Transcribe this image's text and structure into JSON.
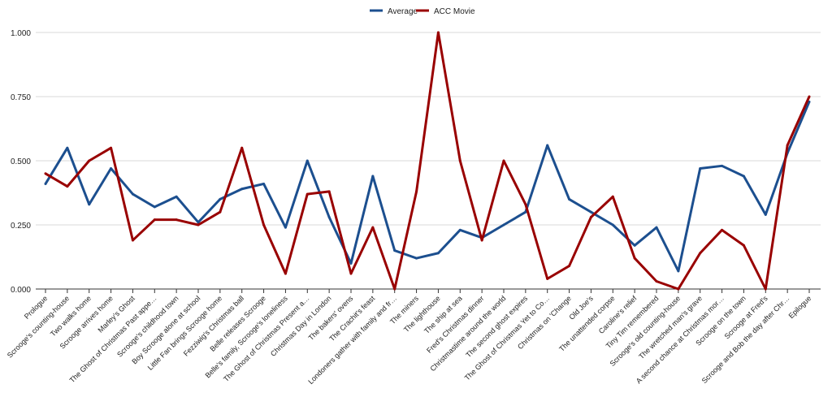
{
  "chart_data": {
    "type": "line",
    "title": "",
    "xlabel": "",
    "ylabel": "",
    "ylim": [
      0,
      1
    ],
    "yticks": [
      "0.000",
      "0.250",
      "0.500",
      "0.750",
      "1.000"
    ],
    "ytick_values": [
      0,
      0.25,
      0.5,
      0.75,
      1
    ],
    "grid": true,
    "legend_position": "top-center",
    "categories": [
      "Prologue",
      "Scrooge's counting-house",
      "Two walks home",
      "Scrooge arrives home",
      "Marley's Ghost",
      "The Ghost of Christmas Past appe…",
      "Scrooge's childhood town",
      "Boy Scrooge alone at school",
      "Little Fan brings Scrooge home",
      "Fezziwig's Christmas ball",
      "Belle releases Scrooge",
      "Belle's family, Scrooge's loneliness",
      "The Ghost of Christmas Present a…",
      "Christmas Day in London",
      "The bakers' ovens",
      "The Crachit's feast",
      "Londoners gather with family and fr…",
      "The miners",
      "The lighthouse",
      "The ship at sea",
      "Fred's Christmas dinner",
      "Christmastime around the world",
      "The second ghost expires",
      "The Ghost of Christmas Yet to Co…",
      "Christmas on 'Change",
      "Old Joe's",
      "The unattended corpse",
      "Caroline's relief",
      "Tiny Tim remembered",
      "Scrooge's old counting-house",
      "The wretched man's grave",
      "A second chance at Christmas mor…",
      "Scrooge on the town",
      "Scrooge at Fred's",
      "Scrooge and Bob the day after Chr…",
      "Epilogue"
    ],
    "series": [
      {
        "name": "Average",
        "color": "#1c4f8f",
        "values": [
          0.41,
          0.55,
          0.33,
          0.47,
          0.37,
          0.32,
          0.36,
          0.26,
          0.35,
          0.39,
          0.41,
          0.24,
          0.5,
          0.28,
          0.1,
          0.44,
          0.15,
          0.12,
          0.14,
          0.23,
          0.2,
          0.25,
          0.3,
          0.56,
          0.35,
          0.3,
          0.25,
          0.17,
          0.24,
          0.07,
          0.47,
          0.48,
          0.44,
          0.29,
          0.53,
          0.73
        ]
      },
      {
        "name": "ACC Movie",
        "color": "#990000",
        "values": [
          0.45,
          0.4,
          0.5,
          0.55,
          0.19,
          0.27,
          0.27,
          0.25,
          0.3,
          0.55,
          0.25,
          0.06,
          0.37,
          0.38,
          0.06,
          0.24,
          0.0,
          0.38,
          1.0,
          0.5,
          0.19,
          0.5,
          0.33,
          0.04,
          0.09,
          0.28,
          0.36,
          0.12,
          0.03,
          0.0,
          0.14,
          0.23,
          0.17,
          0.0,
          0.56,
          0.75
        ]
      }
    ]
  }
}
